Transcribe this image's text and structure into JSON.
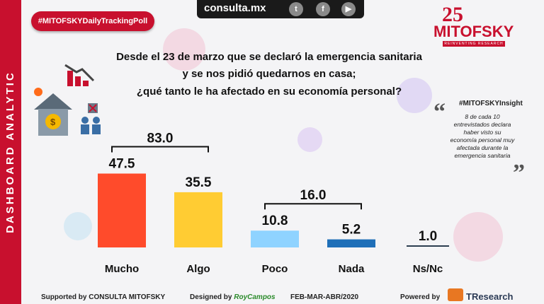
{
  "side_label": "DASHBOARD ANALYTIC",
  "topbar": {
    "site": "consulta.mx",
    "icons": [
      "twitter-icon",
      "facebook-icon",
      "youtube-icon"
    ]
  },
  "hashtag": "#MITOFSKYDailyTrackingPoll",
  "logo": {
    "number": "25",
    "name": "MITOFSKY",
    "tagline": "REINVENTING RESEARCH"
  },
  "question": {
    "line1": "Desde el 23 de marzo que se declaró la emergencia sanitaria",
    "line2": "y se nos pidió quedarnos en casa;",
    "line3": "¿qué tanto le ha afectado en su economía personal?"
  },
  "insight": {
    "title": "#MITOFSKYInsight",
    "text": "8 de cada 10 entrevistados declara haber visto su economía personal muy  afectada durante la emergencia sanitaria"
  },
  "chart_data": {
    "type": "bar",
    "title": "¿qué tanto le ha afectado en su economía personal?",
    "categories": [
      "Mucho",
      "Algo",
      "Poco",
      "Nada",
      "Ns/Nc"
    ],
    "values": [
      47.5,
      35.5,
      10.8,
      5.2,
      1.0
    ],
    "value_labels": [
      "47.5",
      "35.5",
      "10.8",
      "5.2",
      "1.0"
    ],
    "colors": [
      "#ff4b2b",
      "#ffcc33",
      "#8fd3ff",
      "#1f6fb8",
      "#2c3e50"
    ],
    "groups": [
      {
        "label": "83.0",
        "value": 83.0,
        "from": 0,
        "to": 1
      },
      {
        "label": "16.0",
        "value": 16.0,
        "from": 2,
        "to": 3
      }
    ],
    "ylim": [
      0,
      50
    ],
    "xlabel": "",
    "ylabel": ""
  },
  "footer": {
    "supported": "Supported by  CONSULTA  MITOFSKY",
    "designed": "Designed by",
    "designer": "RoyCampos",
    "period": "FEB-MAR-ABR/2020",
    "powered": "Powered by",
    "brand": "TResearch"
  }
}
